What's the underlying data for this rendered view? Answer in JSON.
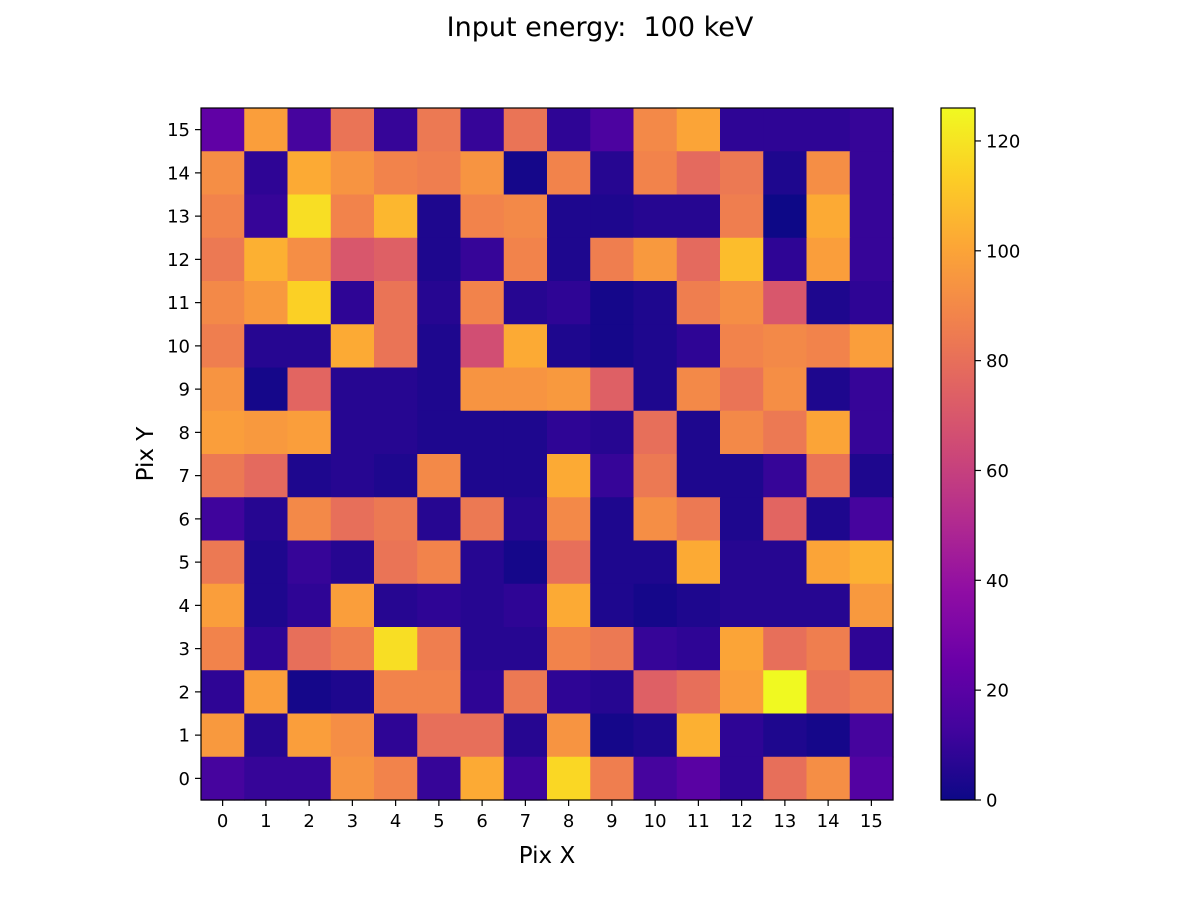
{
  "chart_data": {
    "type": "heatmap",
    "title": "Input energy:  100 keV",
    "xlabel": "Pix X",
    "ylabel": "Pix Y",
    "x_ticks": [
      "0",
      "1",
      "2",
      "3",
      "4",
      "5",
      "6",
      "7",
      "8",
      "9",
      "10",
      "11",
      "12",
      "13",
      "14",
      "15"
    ],
    "y_ticks": [
      "0",
      "1",
      "2",
      "3",
      "4",
      "5",
      "6",
      "7",
      "8",
      "9",
      "10",
      "11",
      "12",
      "13",
      "14",
      "15"
    ],
    "colormap": "plasma",
    "colorbar": {
      "min": 0,
      "max": 126,
      "ticks": [
        "0",
        "20",
        "40",
        "60",
        "80",
        "100",
        "120"
      ]
    },
    "rows_top_to_bottom_y15_to_y0": [
      [
        22,
        98,
        14,
        82,
        10,
        84,
        10,
        82,
        8,
        16,
        90,
        100,
        8,
        8,
        8,
        10
      ],
      [
        92,
        8,
        102,
        94,
        88,
        86,
        94,
        2,
        88,
        6,
        88,
        78,
        84,
        4,
        92,
        10
      ],
      [
        88,
        10,
        118,
        88,
        106,
        4,
        88,
        90,
        4,
        4,
        6,
        6,
        86,
        0,
        102,
        10
      ],
      [
        84,
        104,
        92,
        70,
        74,
        4,
        10,
        88,
        4,
        86,
        96,
        78,
        108,
        8,
        98,
        10
      ],
      [
        90,
        96,
        114,
        8,
        82,
        6,
        88,
        6,
        8,
        2,
        4,
        86,
        92,
        70,
        4,
        8
      ],
      [
        86,
        6,
        6,
        102,
        82,
        4,
        66,
        102,
        4,
        2,
        4,
        8,
        88,
        90,
        88,
        98
      ],
      [
        94,
        2,
        76,
        6,
        6,
        4,
        94,
        94,
        96,
        74,
        4,
        90,
        82,
        92,
        4,
        10
      ],
      [
        98,
        96,
        98,
        6,
        6,
        4,
        4,
        4,
        8,
        6,
        80,
        4,
        90,
        84,
        100,
        10
      ],
      [
        84,
        78,
        4,
        6,
        4,
        90,
        4,
        4,
        102,
        10,
        84,
        4,
        4,
        10,
        82,
        4
      ],
      [
        12,
        6,
        90,
        80,
        84,
        6,
        84,
        6,
        90,
        4,
        92,
        84,
        4,
        76,
        4,
        14
      ],
      [
        84,
        4,
        10,
        6,
        82,
        88,
        6,
        2,
        80,
        4,
        4,
        102,
        6,
        6,
        100,
        104
      ],
      [
        98,
        4,
        8,
        98,
        6,
        8,
        6,
        8,
        102,
        4,
        2,
        4,
        6,
        6,
        6,
        96
      ],
      [
        88,
        8,
        80,
        86,
        118,
        86,
        6,
        6,
        88,
        84,
        10,
        8,
        100,
        80,
        86,
        8
      ],
      [
        8,
        98,
        2,
        4,
        88,
        88,
        8,
        84,
        8,
        6,
        74,
        80,
        98,
        126,
        82,
        86
      ],
      [
        96,
        6,
        98,
        92,
        8,
        80,
        80,
        6,
        94,
        2,
        4,
        104,
        8,
        4,
        2,
        14
      ],
      [
        14,
        10,
        10,
        94,
        88,
        10,
        102,
        12,
        116,
        86,
        14,
        20,
        8,
        80,
        92,
        18
      ]
    ]
  }
}
